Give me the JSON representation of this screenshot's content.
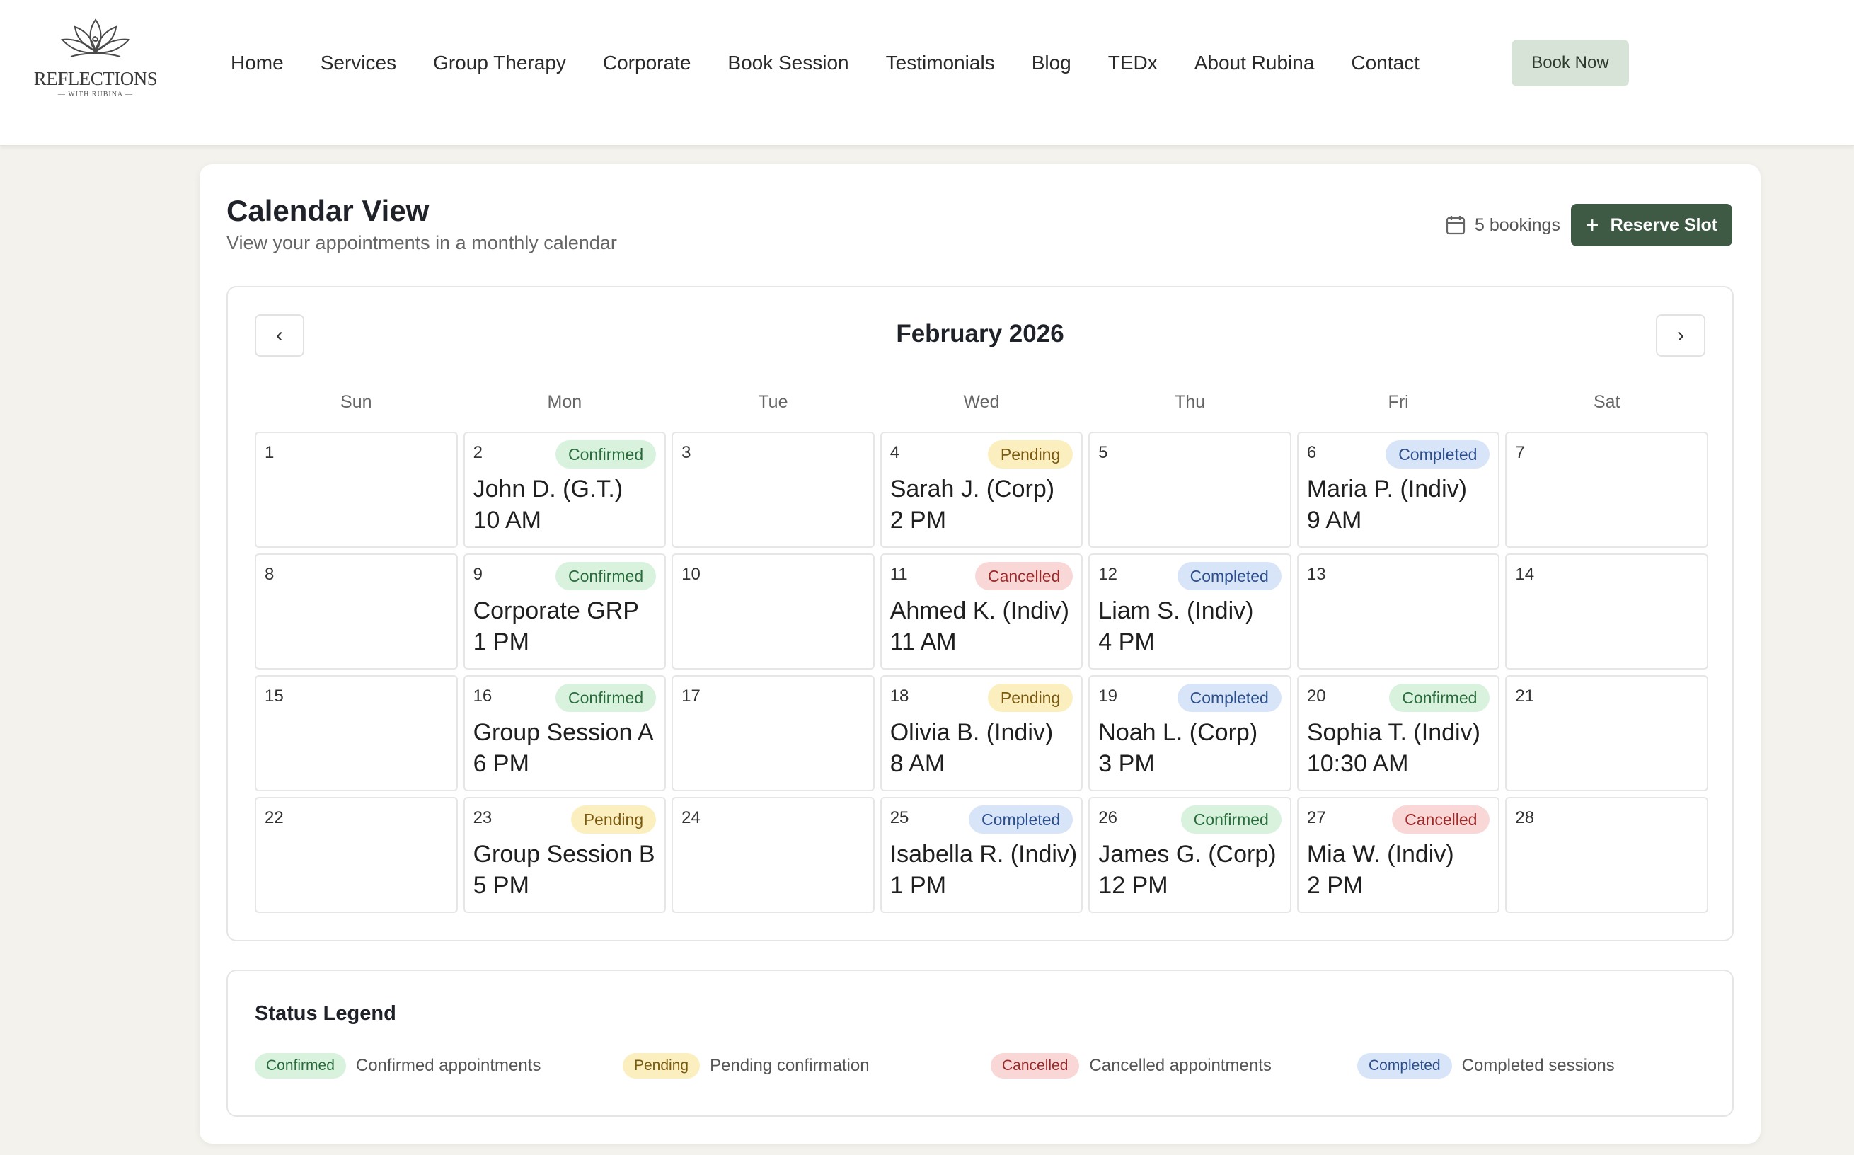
{
  "brand": {
    "name": "REFLECTIONS",
    "tagline": "— WITH RUBINA —"
  },
  "nav": {
    "items": [
      "Home",
      "Services",
      "Group Therapy",
      "Corporate",
      "Book Session",
      "Testimonials",
      "Blog",
      "TEDx",
      "About Rubina",
      "Contact"
    ],
    "book_now_label": "Book Now"
  },
  "page": {
    "title": "Calendar View",
    "subtitle": "View your appointments in a monthly calendar",
    "bookings_count": "5 bookings",
    "reserve_label": "Reserve Slot"
  },
  "calendar": {
    "month": "February 2026",
    "prev_icon": "‹",
    "next_icon": "›",
    "weekdays": [
      "Sun",
      "Mon",
      "Tue",
      "Wed",
      "Thu",
      "Fri",
      "Sat"
    ],
    "weeks": [
      [
        {
          "day": "1"
        },
        {
          "day": "2",
          "status": "Confirmed",
          "title": "John D. (G.T.)",
          "time": "10 AM"
        },
        {
          "day": "3"
        },
        {
          "day": "4",
          "status": "Pending",
          "title": "Sarah J. (Corp)",
          "time": "2 PM"
        },
        {
          "day": "5"
        },
        {
          "day": "6",
          "status": "Completed",
          "title": "Maria P. (Indiv)",
          "time": "9 AM"
        },
        {
          "day": "7"
        }
      ],
      [
        {
          "day": "8"
        },
        {
          "day": "9",
          "status": "Confirmed",
          "title": "Corporate GRP",
          "time": "1 PM"
        },
        {
          "day": "10"
        },
        {
          "day": "11",
          "status": "Cancelled",
          "title": "Ahmed K. (Indiv)",
          "time": "11 AM"
        },
        {
          "day": "12",
          "status": "Completed",
          "title": "Liam S. (Indiv)",
          "time": "4 PM"
        },
        {
          "day": "13"
        },
        {
          "day": "14"
        }
      ],
      [
        {
          "day": "15"
        },
        {
          "day": "16",
          "status": "Confirmed",
          "title": "Group Session A",
          "time": "6 PM"
        },
        {
          "day": "17"
        },
        {
          "day": "18",
          "status": "Pending",
          "title": "Olivia B. (Indiv)",
          "time": "8 AM"
        },
        {
          "day": "19",
          "status": "Completed",
          "title": "Noah L. (Corp)",
          "time": "3 PM"
        },
        {
          "day": "20",
          "status": "Confirmed",
          "title": "Sophia T. (Indiv)",
          "time": "10:30 AM"
        },
        {
          "day": "21"
        }
      ],
      [
        {
          "day": "22"
        },
        {
          "day": "23",
          "status": "Pending",
          "title": "Group Session B",
          "time": "5 PM"
        },
        {
          "day": "24"
        },
        {
          "day": "25",
          "status": "Completed",
          "title": "Isabella R. (Indiv)",
          "time": "1 PM"
        },
        {
          "day": "26",
          "status": "Confirmed",
          "title": "James G. (Corp)",
          "time": "12 PM"
        },
        {
          "day": "27",
          "status": "Cancelled",
          "title": "Mia W. (Indiv)",
          "time": "2 PM"
        },
        {
          "day": "28"
        }
      ]
    ]
  },
  "legend": {
    "title": "Status Legend",
    "items": [
      {
        "status": "Confirmed",
        "description": "Confirmed appointments"
      },
      {
        "status": "Pending",
        "description": "Pending confirmation"
      },
      {
        "status": "Cancelled",
        "description": "Cancelled appointments"
      },
      {
        "status": "Completed",
        "description": "Completed sessions"
      }
    ]
  },
  "colors": {
    "accent": "#3e5a44",
    "confirmed": "#d8f2dd",
    "pending": "#fbefc0",
    "cancelled": "#f9d7d7",
    "completed": "#d8e5f9"
  }
}
